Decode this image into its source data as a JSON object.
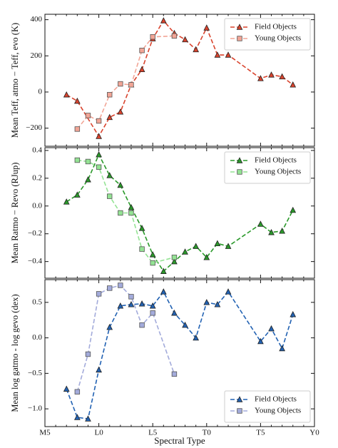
{
  "chart_data": [
    {
      "type": "line",
      "ylabel": "Mean Teff, atmo − Teff, evo (K)",
      "xlim": [
        5,
        30
      ],
      "xticks": [
        5,
        10,
        15,
        20,
        25,
        30
      ],
      "ylim": [
        -300,
        430
      ],
      "yticks": [
        {
          "value": -200,
          "label": "−200"
        },
        0,
        200,
        400
      ],
      "legend": "upper right",
      "series": [
        {
          "name": "Field Objects",
          "color": "#d9432d",
          "marker": "triangle",
          "x": [
            7,
            8,
            10,
            11,
            12,
            13,
            14,
            15,
            16,
            17,
            18,
            19,
            20,
            21,
            22,
            25,
            26,
            27,
            28
          ],
          "values": [
            -15,
            -50,
            -245,
            -140,
            -110,
            40,
            125,
            295,
            395,
            325,
            290,
            235,
            355,
            205,
            205,
            75,
            95,
            85,
            40
          ]
        },
        {
          "name": "Young Objects",
          "color": "#f2a596",
          "marker": "square",
          "x": [
            8,
            9,
            10,
            11,
            12,
            13,
            14,
            15,
            17
          ],
          "values": [
            -205,
            -130,
            -160,
            -15,
            45,
            40,
            230,
            305,
            310
          ]
        }
      ]
    },
    {
      "type": "line",
      "ylabel": "Mean Ratmo − Revo (RJup)",
      "xlim": [
        5,
        30
      ],
      "xticks": [
        5,
        10,
        15,
        20,
        25,
        30
      ],
      "ylim": [
        -0.52,
        0.42
      ],
      "yticks": [
        {
          "value": -0.4,
          "label": "−0.4"
        },
        {
          "value": -0.2,
          "label": "−0.2"
        },
        {
          "value": 0,
          "label": "0.0"
        },
        0.2,
        0.4
      ],
      "legend": "upper right",
      "series": [
        {
          "name": "Field Objects",
          "color": "#2a992a",
          "marker": "triangle",
          "x": [
            7,
            8,
            9,
            10,
            11,
            12,
            13,
            14,
            15,
            16,
            17,
            18,
            19,
            20,
            21,
            22,
            25,
            26,
            27,
            28
          ],
          "values": [
            0.03,
            0.08,
            0.19,
            0.37,
            0.22,
            0.15,
            -0.01,
            -0.16,
            -0.35,
            -0.47,
            -0.4,
            -0.33,
            -0.29,
            -0.37,
            -0.27,
            -0.29,
            -0.13,
            -0.19,
            -0.18,
            -0.03
          ]
        },
        {
          "name": "Young Objects",
          "color": "#94e394",
          "marker": "square",
          "x": [
            8,
            9,
            10,
            11,
            12,
            13,
            14,
            15,
            17
          ],
          "values": [
            0.33,
            0.32,
            0.28,
            0.07,
            -0.05,
            -0.05,
            -0.31,
            -0.41,
            -0.37
          ]
        }
      ]
    },
    {
      "type": "line",
      "ylabel": "Mean log gatmo - log gevo (dex)",
      "xlabel": "Spectral Type",
      "xlim": [
        5,
        30
      ],
      "xticks": [
        {
          "value": 5,
          "label": "M5"
        },
        {
          "value": 10,
          "label": "L0"
        },
        {
          "value": 15,
          "label": "L5"
        },
        {
          "value": 20,
          "label": "T0"
        },
        {
          "value": 25,
          "label": "T5"
        },
        {
          "value": 30,
          "label": "Y0"
        }
      ],
      "ylim": [
        -1.25,
        0.82
      ],
      "yticks": [
        {
          "value": -1,
          "label": "−1.0"
        },
        {
          "value": -0.5,
          "label": "−0.5"
        },
        {
          "value": 0,
          "label": "0.0"
        },
        0.5
      ],
      "legend": "lower right",
      "series": [
        {
          "name": "Field Objects",
          "color": "#2262b3",
          "marker": "triangle",
          "x": [
            7,
            8,
            9,
            10,
            11,
            12,
            13,
            14,
            15,
            16,
            17,
            18,
            19,
            20,
            21,
            22,
            25,
            26,
            27,
            28
          ],
          "values": [
            -0.72,
            -1.12,
            -1.14,
            -0.45,
            0.15,
            0.45,
            0.47,
            0.48,
            0.45,
            0.65,
            0.35,
            0.18,
            0,
            0.5,
            0.47,
            0.65,
            -0.05,
            0.13,
            -0.15,
            0.33
          ]
        },
        {
          "name": "Young Objects",
          "color": "#a3abdb",
          "marker": "square",
          "x": [
            8,
            9,
            10,
            11,
            12,
            13,
            14,
            15,
            17
          ],
          "values": [
            -0.76,
            -0.23,
            0.62,
            0.7,
            0.74,
            0.58,
            0.18,
            0.35,
            -0.51
          ]
        }
      ]
    }
  ]
}
